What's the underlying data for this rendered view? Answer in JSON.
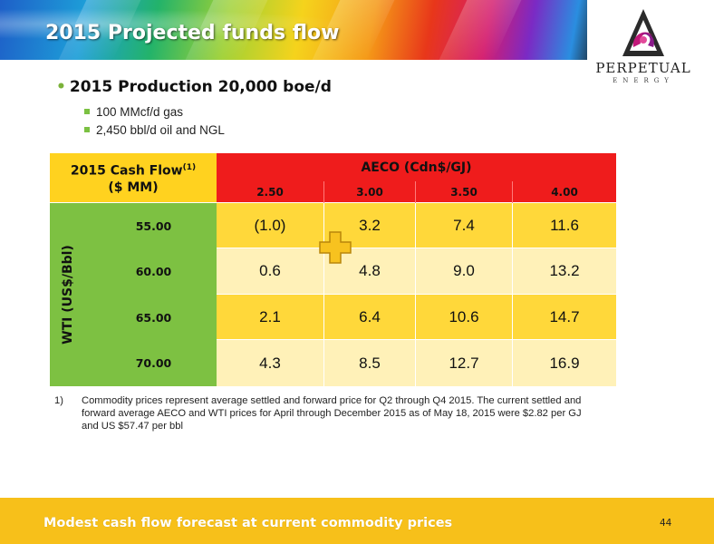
{
  "header": {
    "title": "2015 Projected funds flow"
  },
  "logo": {
    "name": "PERPETUAL",
    "sub": "ENERGY"
  },
  "bullets": {
    "main": "2015 Production 20,000 boe/d",
    "sub": [
      "100 MMcf/d gas",
      "2,450 bbl/d oil and NGL"
    ]
  },
  "table": {
    "corner_line1": "2015 Cash Flow",
    "corner_sup": "(1)",
    "corner_line2": "($ MM)",
    "aeco_title": "AECO (Cdn$/GJ)",
    "aeco_values": [
      "2.50",
      "3.00",
      "3.50",
      "4.00"
    ],
    "wti_title": "WTI (US$/Bbl)",
    "rows": [
      {
        "wti": "55.00",
        "values": [
          "(1.0)",
          "3.2",
          "7.4",
          "11.6"
        ]
      },
      {
        "wti": "60.00",
        "values": [
          "0.6",
          "4.8",
          "9.0",
          "13.2"
        ]
      },
      {
        "wti": "65.00",
        "values": [
          "2.1",
          "6.4",
          "10.6",
          "14.7"
        ]
      },
      {
        "wti": "70.00",
        "values": [
          "4.3",
          "8.5",
          "12.7",
          "16.9"
        ]
      }
    ]
  },
  "footnote": {
    "number": "1)",
    "text": "Commodity prices represent average settled and forward price for Q2 through Q4 2015. The current settled and forward average AECO and WTI prices for April through December 2015 as of May 18, 2015 were $2.82 per GJ and US $57.47 per bbl"
  },
  "footer": {
    "text": "Modest cash flow forecast at current commodity prices",
    "page": "44"
  },
  "colors": {
    "header_yellow": "#ffd21f",
    "header_red": "#ef1c1c",
    "wti_green": "#7dc142",
    "cell_dark": "#ffd83a",
    "cell_light": "#fff1b8",
    "footer": "#f7c01a"
  }
}
